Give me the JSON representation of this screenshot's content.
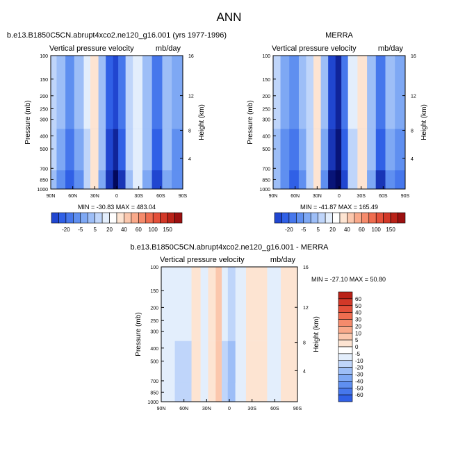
{
  "main_title": "ANN",
  "colors": {
    "neg": [
      "#e3eefc",
      "#bfd5fa",
      "#9dbef7",
      "#7ea8f4",
      "#5f8ff0",
      "#4677ec",
      "#3060e6",
      "#2046d0",
      "#1835b6",
      "#10249a",
      "#081478",
      "#03085c"
    ],
    "pos": [
      "#fde4d2",
      "#fbc7ad",
      "#f9a98a",
      "#f58b6c",
      "#ef6d50",
      "#e4503a",
      "#d23828",
      "#b92218",
      "#9b1010",
      "#7a0505"
    ]
  },
  "panels": [
    {
      "id": "model",
      "title": "b.e13.B1850C5CN.abrupt4xco2.ne120_g16.001 (yrs 1977-1996)",
      "left_label": "Vertical pressure velocity",
      "right_label": "mb/day",
      "min_max": "MIN = -30.83  MAX = 483.04",
      "colorbar_labels": [
        "-20",
        "-5",
        "5",
        "20",
        "40",
        "60",
        "100",
        "150"
      ]
    },
    {
      "id": "obs",
      "title": "MERRA",
      "left_label": "Vertical pressure velocity",
      "right_label": "mb/day",
      "min_max": "MIN = -41.87  MAX = 165.49",
      "colorbar_labels": [
        "-20",
        "-5",
        "5",
        "20",
        "40",
        "60",
        "100",
        "150"
      ]
    },
    {
      "id": "diff",
      "title": "b.e13.B1850C5CN.abrupt4xco2.ne120_g16.001 - MERRA",
      "left_label": "Vertical pressure velocity",
      "right_label": "mb/day",
      "min_max": "MIN = -27.10  MAX =  50.80",
      "colorbar_labels": [
        "60",
        "50",
        "40",
        "30",
        "20",
        "10",
        "5",
        "0",
        "-5",
        "-10",
        "-20",
        "-30",
        "-40",
        "-50",
        "-60"
      ]
    }
  ],
  "chart_data": [
    {
      "type": "heatmap",
      "title": "b.e13.B1850C5CN.abrupt4xco2.ne120_g16.001 (yrs 1977-1996)",
      "xlabel": "",
      "ylabel": "Pressure (mb)",
      "y2label": "Height (km)",
      "x_ticks": [
        "90N",
        "60N",
        "30N",
        "0",
        "30S",
        "60S",
        "90S"
      ],
      "y_ticks": [
        "100",
        "150",
        "200",
        "250",
        "300",
        "400",
        "500",
        "700",
        "850",
        "1000"
      ],
      "y2_ticks": [
        "16",
        "12",
        "8",
        "4"
      ],
      "xlim": [
        90,
        -90
      ],
      "ylim": [
        1000,
        100
      ],
      "y_scale": "log",
      "bands": [
        {
          "lat_start": 90,
          "lat_end": 82,
          "value": -5
        },
        {
          "lat_start": 82,
          "lat_end": 70,
          "value": -10
        },
        {
          "lat_start": 70,
          "lat_end": 58,
          "value": -15
        },
        {
          "lat_start": 58,
          "lat_end": 45,
          "value": -10
        },
        {
          "lat_start": 45,
          "lat_end": 36,
          "value": -3
        },
        {
          "lat_start": 36,
          "lat_end": 25,
          "value": 4
        },
        {
          "lat_start": 25,
          "lat_end": 15,
          "value": -8
        },
        {
          "lat_start": 15,
          "lat_end": 5,
          "value": -22
        },
        {
          "lat_start": 5,
          "lat_end": -2,
          "value": -28
        },
        {
          "lat_start": -2,
          "lat_end": -12,
          "value": -20
        },
        {
          "lat_start": -12,
          "lat_end": -22,
          "value": -5
        },
        {
          "lat_start": -22,
          "lat_end": -35,
          "value": -2
        },
        {
          "lat_start": -35,
          "lat_end": -48,
          "value": -8
        },
        {
          "lat_start": -48,
          "lat_end": -62,
          "value": -18
        },
        {
          "lat_start": -62,
          "lat_end": -75,
          "value": -8
        },
        {
          "lat_start": -75,
          "lat_end": -90,
          "value": -12
        }
      ]
    },
    {
      "type": "heatmap",
      "title": "MERRA",
      "xlabel": "",
      "ylabel": "Pressure (mb)",
      "y2label": "Height (km)",
      "x_ticks": [
        "90N",
        "60N",
        "30N",
        "0",
        "30S",
        "60S",
        "90S"
      ],
      "y_ticks": [
        "100",
        "150",
        "200",
        "250",
        "300",
        "400",
        "500",
        "700",
        "850",
        "1000"
      ],
      "y2_ticks": [
        "16",
        "12",
        "8",
        "4"
      ],
      "xlim": [
        90,
        -90
      ],
      "ylim": [
        1000,
        100
      ],
      "y_scale": "log",
      "bands": [
        {
          "lat_start": 90,
          "lat_end": 80,
          "value": -6
        },
        {
          "lat_start": 80,
          "lat_end": 68,
          "value": -12
        },
        {
          "lat_start": 68,
          "lat_end": 55,
          "value": -16
        },
        {
          "lat_start": 55,
          "lat_end": 45,
          "value": -10
        },
        {
          "lat_start": 45,
          "lat_end": 35,
          "value": -4
        },
        {
          "lat_start": 35,
          "lat_end": 25,
          "value": 2
        },
        {
          "lat_start": 25,
          "lat_end": 15,
          "value": -10
        },
        {
          "lat_start": 15,
          "lat_end": 5,
          "value": -25
        },
        {
          "lat_start": 5,
          "lat_end": -3,
          "value": -32
        },
        {
          "lat_start": -3,
          "lat_end": -12,
          "value": -18
        },
        {
          "lat_start": -12,
          "lat_end": -25,
          "value": -3
        },
        {
          "lat_start": -25,
          "lat_end": -38,
          "value": 3
        },
        {
          "lat_start": -38,
          "lat_end": -50,
          "value": -8
        },
        {
          "lat_start": -50,
          "lat_end": -63,
          "value": -20
        },
        {
          "lat_start": -63,
          "lat_end": -76,
          "value": -10
        },
        {
          "lat_start": -76,
          "lat_end": -90,
          "value": -14
        }
      ]
    },
    {
      "type": "heatmap",
      "title": "b.e13.B1850C5CN.abrupt4xco2.ne120_g16.001 - MERRA",
      "xlabel": "",
      "ylabel": "Pressure (mb)",
      "y2label": "Height (km)",
      "x_ticks": [
        "90N",
        "60N",
        "30N",
        "0",
        "30S",
        "60S",
        "90S"
      ],
      "y_ticks": [
        "100",
        "150",
        "200",
        "250",
        "300",
        "400",
        "500",
        "700",
        "850",
        "1000"
      ],
      "y2_ticks": [
        "16",
        "12",
        "8",
        "4"
      ],
      "xlim": [
        90,
        -90
      ],
      "ylim": [
        1000,
        100
      ],
      "y_scale": "log",
      "bands": [
        {
          "lat_start": 90,
          "lat_end": 72,
          "value": -2
        },
        {
          "lat_start": 72,
          "lat_end": 50,
          "value": -3
        },
        {
          "lat_start": 50,
          "lat_end": 38,
          "value": 2
        },
        {
          "lat_start": 38,
          "lat_end": 28,
          "value": -2
        },
        {
          "lat_start": 28,
          "lat_end": 18,
          "value": 4
        },
        {
          "lat_start": 18,
          "lat_end": 10,
          "value": 7
        },
        {
          "lat_start": 10,
          "lat_end": 2,
          "value": -3
        },
        {
          "lat_start": 2,
          "lat_end": -8,
          "value": -6
        },
        {
          "lat_start": -8,
          "lat_end": -22,
          "value": -2
        },
        {
          "lat_start": -22,
          "lat_end": -50,
          "value": 3
        },
        {
          "lat_start": -50,
          "lat_end": -68,
          "value": -2
        },
        {
          "lat_start": -68,
          "lat_end": -90,
          "value": 2
        }
      ]
    }
  ]
}
